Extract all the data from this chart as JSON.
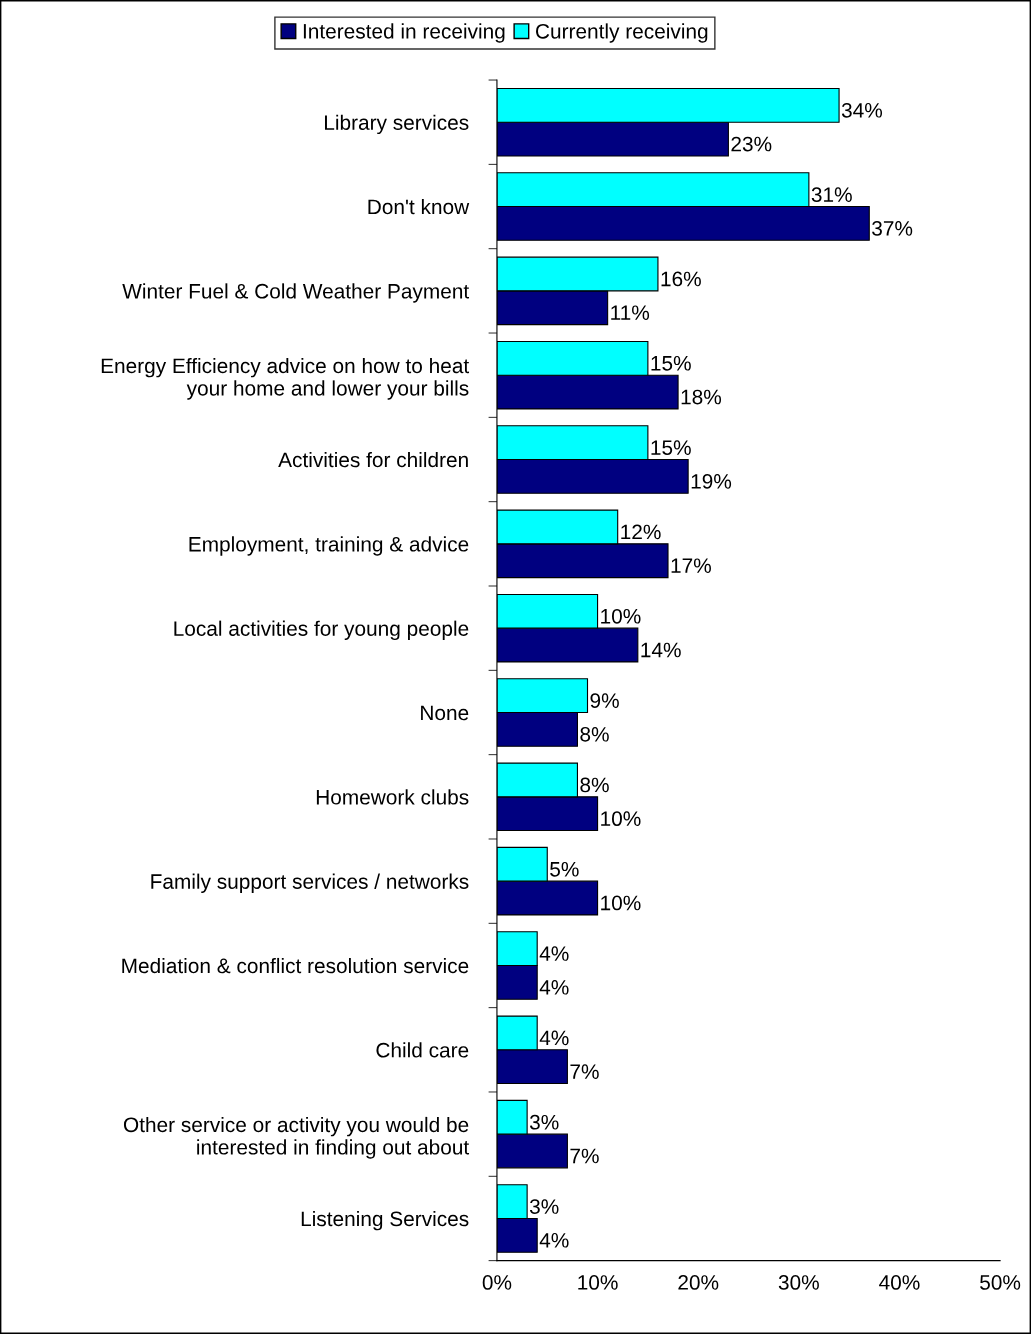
{
  "chart_data": {
    "type": "bar",
    "orientation": "horizontal",
    "categories": [
      "Library services",
      "Don't know",
      "Winter Fuel & Cold Weather Payment",
      "Energy Efficiency advice on how to heat\nyour home and lower your bills",
      "Activities for children",
      "Employment, training & advice",
      "Local activities for young people",
      "None",
      "Homework clubs",
      "Family support services / networks",
      "Mediation & conflict resolution service",
      "Child care",
      "Other service or activity you would be\ninterested in finding out about",
      "Listening Services"
    ],
    "series": [
      {
        "name": "Interested in receiving",
        "color": "#000080",
        "values": [
          23,
          37,
          11,
          18,
          19,
          17,
          14,
          8,
          10,
          10,
          4,
          7,
          7,
          4
        ],
        "value_labels": [
          "23%",
          "37%",
          "11%",
          "18%",
          "19%",
          "17%",
          "14%",
          "8%",
          "10%",
          "10%",
          "4%",
          "7%",
          "7%",
          "4%"
        ]
      },
      {
        "name": "Currently receiving",
        "color": "#00ffff",
        "values": [
          34,
          31,
          16,
          15,
          15,
          12,
          10,
          9,
          8,
          5,
          4,
          4,
          3,
          3
        ],
        "value_labels": [
          "34%",
          "31%",
          "16%",
          "15%",
          "15%",
          "12%",
          "10%",
          "9%",
          "8%",
          "5%",
          "4%",
          "4%",
          "3%",
          "3%"
        ]
      }
    ],
    "xlim": [
      0,
      50
    ],
    "xticks": [
      {
        "value": 0,
        "label": "0%"
      },
      {
        "value": 10,
        "label": "10%"
      },
      {
        "value": 20,
        "label": "20%"
      },
      {
        "value": 30,
        "label": "30%"
      },
      {
        "value": 40,
        "label": "40%"
      },
      {
        "value": 50,
        "label": "50%"
      }
    ],
    "legend": "top",
    "grid": false
  }
}
